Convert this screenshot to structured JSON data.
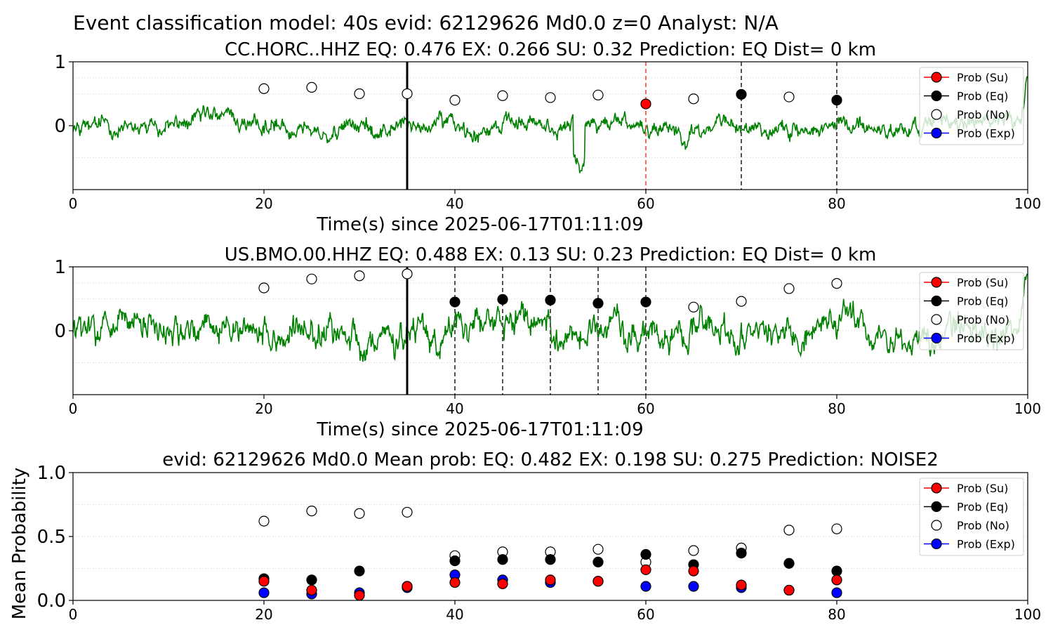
{
  "suptitle": "Event classification model: 40s evid: 62129626 Md0.0 z=0 Analyst: N/A",
  "colors": {
    "waveform": "#008000",
    "su": "#ff0000",
    "eq": "#000000",
    "no": "#ffffff",
    "exp": "#0000ff",
    "vline_solid": "#000000",
    "vline_dash": "#555555",
    "vline_red": "#ff4444"
  },
  "legend": {
    "placement": "upper-right",
    "items": [
      {
        "label": "Prob (Su)",
        "color": "#ff0000"
      },
      {
        "label": "Prob (Eq)",
        "color": "#000000"
      },
      {
        "label": "Prob (No)",
        "color": "#ffffff"
      },
      {
        "label": "Prob (Exp)",
        "color": "#0000ff"
      }
    ]
  },
  "chart_data": [
    {
      "type": "line",
      "title": "CC.HORC..HHZ   EQ: 0.476  EX: 0.266  SU: 0.32   Prediction: EQ    Dist= 0 km",
      "xlabel": "Time(s) since 2025-06-17T01:11:09",
      "ylabel": "",
      "xlim": [
        0,
        100
      ],
      "ylim": [
        -1,
        1
      ],
      "xticks": [
        "0",
        "20",
        "40",
        "60",
        "80",
        "100"
      ],
      "yticks": [
        "1",
        "0"
      ],
      "grid": "horizontal-dotted",
      "solid_vlines": [
        35
      ],
      "dashed_vlines": [
        70,
        80
      ],
      "red_dashed_vlines": [
        60
      ],
      "series": [
        {
          "name": "Prob (No)",
          "x": [
            20,
            25,
            30,
            35,
            40,
            45,
            50,
            55,
            65,
            75
          ],
          "y": [
            0.58,
            0.6,
            0.5,
            0.5,
            0.4,
            0.47,
            0.44,
            0.48,
            0.42,
            0.45
          ]
        },
        {
          "name": "Prob (Eq)",
          "x": [
            70,
            80
          ],
          "y": [
            0.49,
            0.4
          ]
        },
        {
          "name": "Prob (Su)",
          "x": [
            60
          ],
          "y": [
            0.34
          ]
        }
      ]
    },
    {
      "type": "line",
      "title": "US.BMO.00.HHZ   EQ: 0.488  EX: 0.13  SU: 0.23   Prediction: EQ    Dist= 0 km",
      "xlabel": "Time(s) since 2025-06-17T01:11:09",
      "ylabel": "",
      "xlim": [
        0,
        100
      ],
      "ylim": [
        -1,
        1
      ],
      "xticks": [
        "0",
        "20",
        "40",
        "60",
        "80",
        "100"
      ],
      "yticks": [
        "1",
        "0"
      ],
      "grid": "horizontal-dotted",
      "solid_vlines": [
        35
      ],
      "dashed_vlines": [
        40,
        45,
        50,
        55,
        60
      ],
      "red_dashed_vlines": [],
      "series": [
        {
          "name": "Prob (No)",
          "x": [
            20,
            25,
            30,
            35,
            65,
            70,
            75,
            80
          ],
          "y": [
            0.67,
            0.81,
            0.86,
            0.89,
            0.37,
            0.46,
            0.66,
            0.74
          ]
        },
        {
          "name": "Prob (Eq)",
          "x": [
            40,
            45,
            50,
            55,
            60
          ],
          "y": [
            0.45,
            0.49,
            0.48,
            0.43,
            0.45
          ]
        }
      ]
    },
    {
      "type": "scatter",
      "title": "evid: 62129626  Md0.0   Mean prob:   EQ: 0.482  EX: 0.198  SU: 0.275   Prediction: NOISE2",
      "xlabel": "",
      "ylabel": "Mean Probability",
      "xlim": [
        0,
        100
      ],
      "ylim": [
        0,
        1
      ],
      "xticks": [
        "0",
        "20",
        "40",
        "60",
        "80",
        "100"
      ],
      "yticks": [
        "1.0",
        "0.5",
        "0.0"
      ],
      "grid": "horizontal-dotted",
      "x": [
        20,
        25,
        30,
        35,
        40,
        45,
        50,
        55,
        60,
        65,
        70,
        75,
        80
      ],
      "series": [
        {
          "name": "Prob (No)",
          "y": [
            0.62,
            0.7,
            0.68,
            0.69,
            0.35,
            0.38,
            0.38,
            0.4,
            0.3,
            0.39,
            0.41,
            0.55,
            0.56
          ]
        },
        {
          "name": "Prob (Eq)",
          "y": [
            0.17,
            0.16,
            0.23,
            0.11,
            0.31,
            0.32,
            0.32,
            0.3,
            0.36,
            0.28,
            0.37,
            0.29,
            0.23
          ]
        },
        {
          "name": "Prob (Exp)",
          "y": [
            0.06,
            0.05,
            0.06,
            0.1,
            0.2,
            0.16,
            0.14,
            0.15,
            0.11,
            0.11,
            0.1,
            0.08,
            0.06
          ]
        },
        {
          "name": "Prob (Su)",
          "y": [
            0.15,
            0.08,
            0.04,
            0.11,
            0.14,
            0.13,
            0.16,
            0.15,
            0.24,
            0.23,
            0.12,
            0.08,
            0.16
          ]
        }
      ]
    }
  ]
}
